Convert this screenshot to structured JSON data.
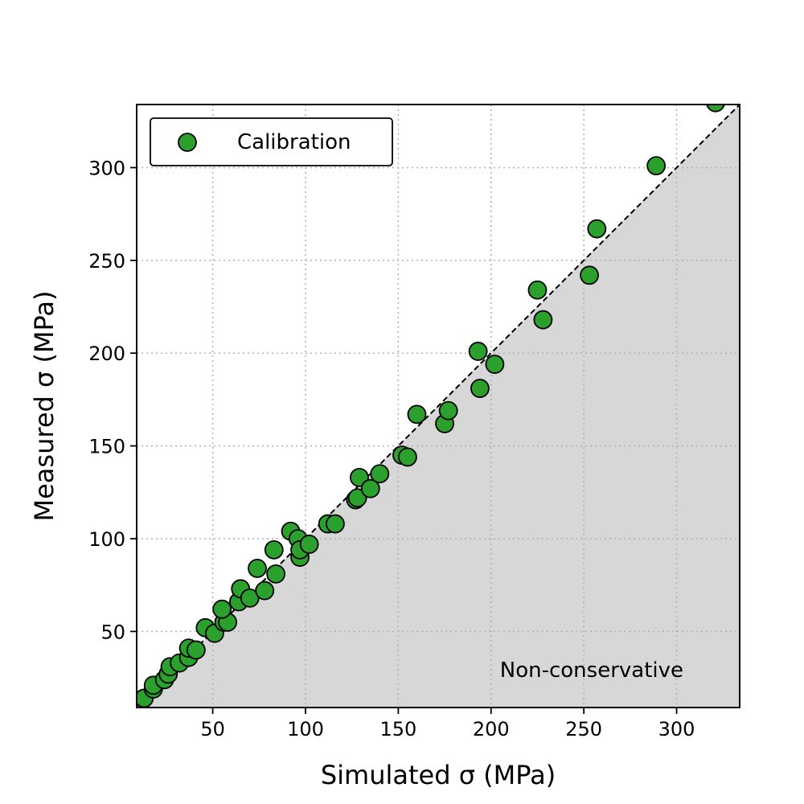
{
  "chart_data": {
    "type": "scatter",
    "xlabel": "Simulated σ (MPa)",
    "ylabel": "Measured σ (MPa)",
    "xlim": [
      9,
      334
    ],
    "ylim": [
      9,
      334
    ],
    "xticks": [
      50,
      100,
      150,
      200,
      250,
      300
    ],
    "yticks": [
      50,
      100,
      150,
      200,
      250,
      300
    ],
    "grid": true,
    "legend_position": "top-left",
    "reference_line": "y = x",
    "shaded_region": "below y = x",
    "annotation": "Non-conservative",
    "colors": {
      "marker": "#2ca02c",
      "marker_edge": "#000000",
      "shade": "#d7d7d7"
    },
    "series": [
      {
        "name": "Calibration",
        "points": [
          [
            9,
            11
          ],
          [
            13,
            14
          ],
          [
            18,
            19
          ],
          [
            18,
            21
          ],
          [
            24,
            24
          ],
          [
            26,
            27
          ],
          [
            27,
            31
          ],
          [
            32,
            33
          ],
          [
            37,
            36
          ],
          [
            37,
            41
          ],
          [
            41,
            40
          ],
          [
            46,
            52
          ],
          [
            51,
            49
          ],
          [
            56,
            55
          ],
          [
            58,
            55
          ],
          [
            55,
            62
          ],
          [
            64,
            66
          ],
          [
            65,
            73
          ],
          [
            70,
            68
          ],
          [
            74,
            84
          ],
          [
            78,
            72
          ],
          [
            83,
            94
          ],
          [
            84,
            81
          ],
          [
            92,
            104
          ],
          [
            96,
            100
          ],
          [
            97,
            90
          ],
          [
            97,
            94
          ],
          [
            102,
            97
          ],
          [
            112,
            108
          ],
          [
            116,
            108
          ],
          [
            127,
            121
          ],
          [
            128,
            122
          ],
          [
            129,
            133
          ],
          [
            135,
            127
          ],
          [
            140,
            135
          ],
          [
            152,
            145
          ],
          [
            155,
            144
          ],
          [
            160,
            167
          ],
          [
            175,
            162
          ],
          [
            177,
            169
          ],
          [
            193,
            201
          ],
          [
            194,
            181
          ],
          [
            202,
            194
          ],
          [
            225,
            234
          ],
          [
            228,
            218
          ],
          [
            253,
            242
          ],
          [
            257,
            267
          ],
          [
            289,
            301
          ],
          [
            321,
            335
          ]
        ]
      }
    ]
  }
}
